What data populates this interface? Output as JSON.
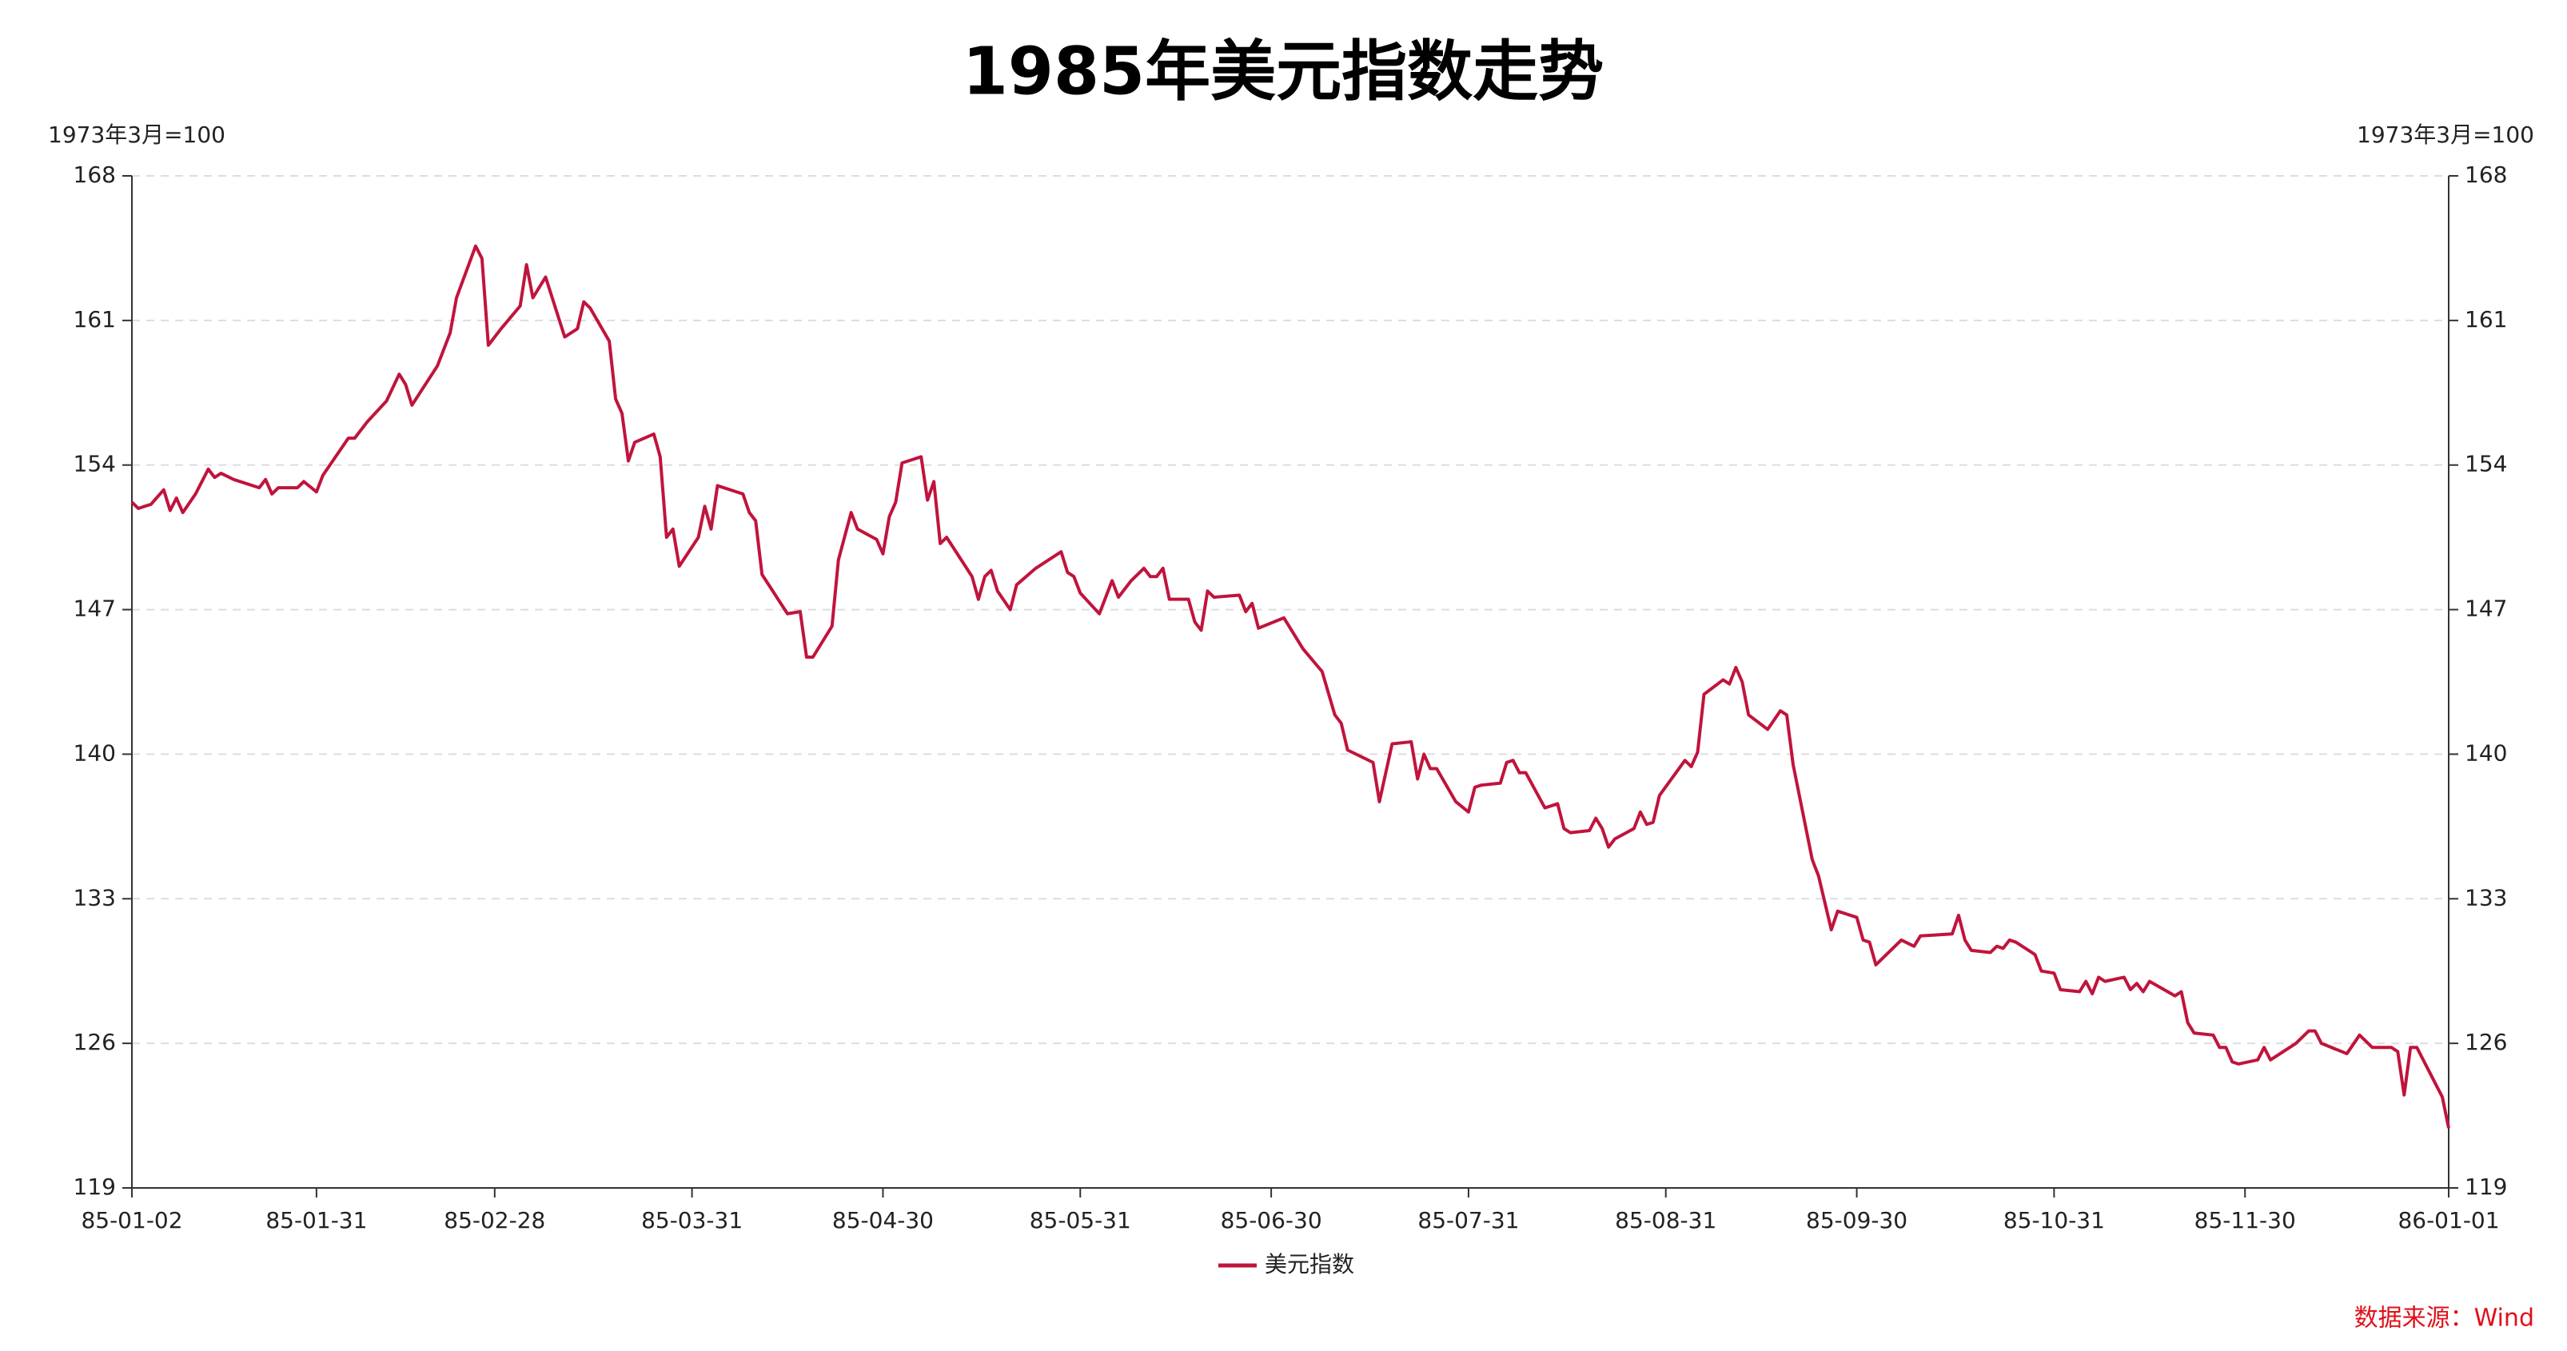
{
  "chart_data": {
    "type": "line",
    "title": "1985年美元指数走势",
    "y_label": "1973年3月=100",
    "y2_label": "1973年3月=100",
    "source": "数据来源：Wind",
    "grid": true,
    "legend": "bottom",
    "xlim": [
      "85-01-02",
      "86-01-01"
    ],
    "xticks": [
      "85-01-02",
      "85-01-31",
      "85-02-28",
      "85-03-31",
      "85-04-30",
      "85-05-31",
      "85-06-30",
      "85-07-31",
      "85-08-31",
      "85-09-30",
      "85-10-31",
      "85-11-30",
      "86-01-01"
    ],
    "ylim": [
      119,
      168
    ],
    "yticks": [
      119,
      126,
      133,
      140,
      147,
      154,
      161,
      168
    ],
    "y2lim": [
      119,
      168
    ],
    "y2ticks": [
      119,
      126,
      133,
      140,
      147,
      154,
      161,
      168
    ],
    "x": [
      "85-01-02",
      "85-01-03",
      "85-01-05",
      "85-01-07",
      "85-01-08",
      "85-01-09",
      "85-01-10",
      "85-01-12",
      "85-01-14",
      "85-01-15",
      "85-01-16",
      "85-01-18",
      "85-01-22",
      "85-01-23",
      "85-01-24",
      "85-01-25",
      "85-01-28",
      "85-01-29",
      "85-01-31",
      "85-02-01",
      "85-02-05",
      "85-02-06",
      "85-02-08",
      "85-02-11",
      "85-02-13",
      "85-02-14",
      "85-02-15",
      "85-02-19",
      "85-02-21",
      "85-02-22",
      "85-02-25",
      "85-02-26",
      "85-02-27",
      "85-03-01",
      "85-03-04",
      "85-03-05",
      "85-03-06",
      "85-03-08",
      "85-03-11",
      "85-03-13",
      "85-03-14",
      "85-03-15",
      "85-03-18",
      "85-03-19",
      "85-03-20",
      "85-03-21",
      "85-03-22",
      "85-03-25",
      "85-03-26",
      "85-03-27",
      "85-03-28",
      "85-03-29",
      "85-04-01",
      "85-04-02",
      "85-04-03",
      "85-04-04",
      "85-04-08",
      "85-04-09",
      "85-04-10",
      "85-04-11",
      "85-04-15",
      "85-04-17",
      "85-04-18",
      "85-04-19",
      "85-04-22",
      "85-04-23",
      "85-04-25",
      "85-04-26",
      "85-04-29",
      "85-04-30",
      "85-05-01",
      "85-05-02",
      "85-05-03",
      "85-05-06",
      "85-05-07",
      "85-05-08",
      "85-05-09",
      "85-05-10",
      "85-05-14",
      "85-05-15",
      "85-05-16",
      "85-05-17",
      "85-05-18",
      "85-05-20",
      "85-05-21",
      "85-05-24",
      "85-05-28",
      "85-05-29",
      "85-05-30",
      "85-05-31",
      "85-06-03",
      "85-06-05",
      "85-06-06",
      "85-06-08",
      "85-06-10",
      "85-06-11",
      "85-06-12",
      "85-06-13",
      "85-06-14",
      "85-06-17",
      "85-06-18",
      "85-06-19",
      "85-06-20",
      "85-06-21",
      "85-06-25",
      "85-06-26",
      "85-06-27",
      "85-06-28",
      "85-07-02",
      "85-07-05",
      "85-07-08",
      "85-07-10",
      "85-07-11",
      "85-07-12",
      "85-07-16",
      "85-07-17",
      "85-07-19",
      "85-07-22",
      "85-07-23",
      "85-07-24",
      "85-07-25",
      "85-07-26",
      "85-07-29",
      "85-07-31",
      "85-08-01",
      "85-08-02",
      "85-08-05",
      "85-08-06",
      "85-08-07",
      "85-08-08",
      "85-08-09",
      "85-08-12",
      "85-08-14",
      "85-08-15",
      "85-08-16",
      "85-08-19",
      "85-08-20",
      "85-08-21",
      "85-08-22",
      "85-08-23",
      "85-08-26",
      "85-08-27",
      "85-08-28",
      "85-08-29",
      "85-08-30",
      "85-09-03",
      "85-09-04",
      "85-09-05",
      "85-09-06",
      "85-09-09",
      "85-09-10",
      "85-09-11",
      "85-09-12",
      "85-09-13",
      "85-09-16",
      "85-09-18",
      "85-09-19",
      "85-09-20",
      "85-09-23",
      "85-09-24",
      "85-09-26",
      "85-09-27",
      "85-09-30",
      "85-10-01",
      "85-10-02",
      "85-10-03",
      "85-10-07",
      "85-10-09",
      "85-10-10",
      "85-10-15",
      "85-10-16",
      "85-10-17",
      "85-10-18",
      "85-10-21",
      "85-10-22",
      "85-10-23",
      "85-10-24",
      "85-10-25",
      "85-10-28",
      "85-10-29",
      "85-10-31",
      "85-11-01",
      "85-11-04",
      "85-11-05",
      "85-11-06",
      "85-11-07",
      "85-11-08",
      "85-11-11",
      "85-11-12",
      "85-11-13",
      "85-11-14",
      "85-11-15",
      "85-11-19",
      "85-11-20",
      "85-11-21",
      "85-11-22",
      "85-11-25",
      "85-11-26",
      "85-11-27",
      "85-11-28",
      "85-11-29",
      "85-12-02",
      "85-12-03",
      "85-12-04",
      "85-12-05",
      "85-12-08",
      "85-12-10",
      "85-12-11",
      "85-12-12",
      "85-12-16",
      "85-12-18",
      "85-12-20",
      "85-12-23",
      "85-12-24",
      "85-12-25",
      "85-12-26",
      "85-12-27",
      "85-12-31",
      "86-01-01"
    ],
    "series": [
      {
        "name": "美元指数",
        "color": "#c0143c",
        "values": [
          152.2,
          151.9,
          152.1,
          152.8,
          151.8,
          152.4,
          151.7,
          152.6,
          153.8,
          153.4,
          153.6,
          153.3,
          152.9,
          153.3,
          152.6,
          152.9,
          152.9,
          153.2,
          152.7,
          153.5,
          155.3,
          155.3,
          156.1,
          157.1,
          158.4,
          157.9,
          156.9,
          158.8,
          160.4,
          162.1,
          164.6,
          164.0,
          159.8,
          160.6,
          161.7,
          163.7,
          162.1,
          163.1,
          160.2,
          160.6,
          161.9,
          161.6,
          160.0,
          157.2,
          156.5,
          154.2,
          155.1,
          155.5,
          154.4,
          150.5,
          150.9,
          149.1,
          150.5,
          152.0,
          150.9,
          153.0,
          152.6,
          151.7,
          151.3,
          148.7,
          146.8,
          146.9,
          144.7,
          144.7,
          146.2,
          149.4,
          151.7,
          150.9,
          150.4,
          149.7,
          151.5,
          152.2,
          154.1,
          154.4,
          152.3,
          153.2,
          150.2,
          150.5,
          148.6,
          147.5,
          148.6,
          148.9,
          147.9,
          147.0,
          148.2,
          149.0,
          149.8,
          148.8,
          148.6,
          147.8,
          146.8,
          148.4,
          147.6,
          148.4,
          149.0,
          148.6,
          148.6,
          149.0,
          147.5,
          147.5,
          146.4,
          146.0,
          147.9,
          147.6,
          147.7,
          146.9,
          147.3,
          146.1,
          146.6,
          145.1,
          144.0,
          141.9,
          141.5,
          140.2,
          139.6,
          137.7,
          140.5,
          140.6,
          138.8,
          140.0,
          139.3,
          139.3,
          137.7,
          137.2,
          138.4,
          138.5,
          138.6,
          139.6,
          139.7,
          139.1,
          139.1,
          137.4,
          137.6,
          136.4,
          136.2,
          136.3,
          136.9,
          136.4,
          135.5,
          135.9,
          136.4,
          137.2,
          136.6,
          136.7,
          138.0,
          139.7,
          139.4,
          140.1,
          142.9,
          143.6,
          143.4,
          144.2,
          143.5,
          141.9,
          141.2,
          142.1,
          141.9,
          139.5,
          134.9,
          134.1,
          131.5,
          132.4,
          132.1,
          131.0,
          130.9,
          129.8,
          131.0,
          130.7,
          131.2,
          131.3,
          132.2,
          131.0,
          130.5,
          130.4,
          130.7,
          130.6,
          131.0,
          130.9,
          130.3,
          129.5,
          129.4,
          128.6,
          128.5,
          129.0,
          128.4,
          129.2,
          129.0,
          129.2,
          128.6,
          128.9,
          128.5,
          129.0,
          128.3,
          128.5,
          127.0,
          126.5,
          126.4,
          125.8,
          125.8,
          125.1,
          125.0,
          125.2,
          125.8,
          125.2,
          125.4,
          126.0,
          126.6,
          126.6,
          126.0,
          125.5,
          126.4,
          125.8,
          125.8,
          125.6,
          123.5,
          125.8,
          125.8,
          123.4,
          121.9
        ]
      }
    ]
  }
}
